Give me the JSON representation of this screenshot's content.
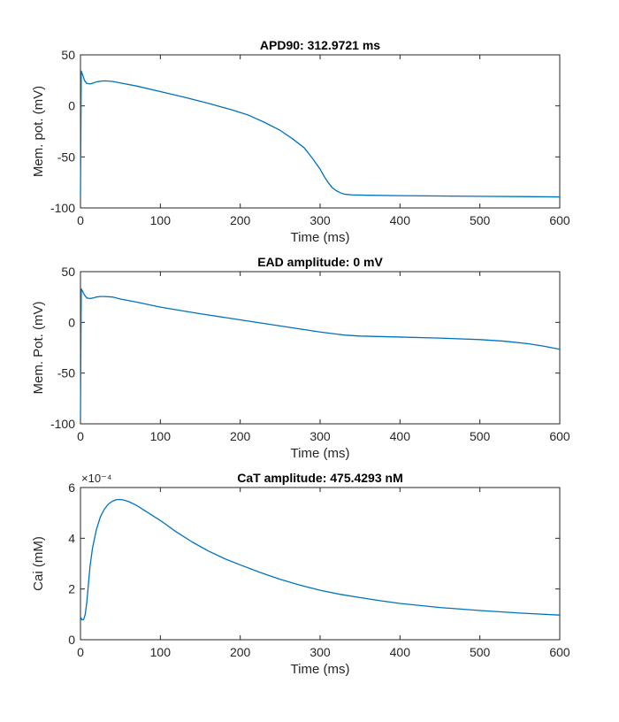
{
  "chart_data": [
    {
      "type": "line",
      "title": "APD90: 312.9721 ms",
      "xlabel": "Time (ms)",
      "ylabel": "Mem. pot. (mV)",
      "xlim": [
        0,
        600
      ],
      "ylim": [
        -100,
        50
      ],
      "xticks": [
        "0",
        "100",
        "200",
        "300",
        "400",
        "500",
        "600"
      ],
      "yticks": [
        "-100",
        "-50",
        "0",
        "50"
      ],
      "grid": false,
      "color": "#0072BD",
      "series": [
        {
          "x": [
            0,
            0.5,
            1,
            3,
            5,
            8,
            12,
            16,
            20,
            25,
            30,
            40,
            50,
            70,
            100,
            130,
            160,
            190,
            210,
            230,
            250,
            265,
            280,
            290,
            300,
            305,
            310,
            315,
            320,
            325,
            330,
            340,
            360,
            400,
            450,
            500,
            550,
            600
          ],
          "y": [
            -88,
            -30,
            34,
            30,
            25,
            22,
            21.5,
            22.5,
            23.5,
            24.2,
            24.5,
            24,
            22.5,
            19.5,
            14,
            8.5,
            2.5,
            -4,
            -9,
            -16,
            -24,
            -32,
            -41,
            -51,
            -62,
            -69,
            -75,
            -80,
            -83,
            -85,
            -86.5,
            -87.2,
            -87.6,
            -88,
            -88.3,
            -88.6,
            -88.9,
            -89.2
          ]
        }
      ]
    },
    {
      "type": "line",
      "title": "EAD amplitude: 0 mV",
      "xlabel": "Time (ms)",
      "ylabel": "Mem. Pot. (mV)",
      "xlim": [
        0,
        600
      ],
      "ylim": [
        -100,
        50
      ],
      "xticks": [
        "0",
        "100",
        "200",
        "300",
        "400",
        "500",
        "600"
      ],
      "yticks": [
        "-100",
        "-50",
        "0",
        "50"
      ],
      "grid": false,
      "color": "#0072BD",
      "series": [
        {
          "x": [
            0,
            0.5,
            1,
            3,
            5,
            8,
            12,
            16,
            20,
            25,
            30,
            40,
            50,
            70,
            100,
            150,
            200,
            250,
            300,
            330,
            350,
            400,
            450,
            500,
            530,
            560,
            580,
            600
          ],
          "y": [
            -95,
            -30,
            33,
            30,
            27,
            24,
            23.5,
            24,
            25,
            25.5,
            25.5,
            25,
            23,
            20,
            15,
            8.5,
            2.5,
            -3.5,
            -9.5,
            -12.5,
            -13.5,
            -14.5,
            -15.5,
            -17,
            -18.5,
            -21,
            -23.5,
            -26.5
          ]
        }
      ]
    },
    {
      "type": "line",
      "title": "CaT amplitude: 475.4293 nM",
      "xlabel": "Time (ms)",
      "ylabel": "Cai (mM)",
      "ylabel_exponent": "×10⁻⁴",
      "xlim": [
        0,
        600
      ],
      "ylim": [
        0,
        6
      ],
      "xticks": [
        "0",
        "100",
        "200",
        "300",
        "400",
        "500",
        "600"
      ],
      "yticks": [
        "0",
        "2",
        "4",
        "6"
      ],
      "grid": false,
      "color": "#0072BD",
      "series": [
        {
          "x": [
            0,
            2,
            4,
            6,
            8,
            10,
            12,
            15,
            20,
            25,
            30,
            35,
            40,
            45,
            50,
            55,
            60,
            70,
            80,
            90,
            100,
            120,
            140,
            160,
            180,
            200,
            225,
            250,
            275,
            300,
            325,
            350,
            375,
            400,
            450,
            500,
            550,
            600
          ],
          "y": [
            0.9,
            0.78,
            0.8,
            1.0,
            1.5,
            2.2,
            2.9,
            3.6,
            4.35,
            4.85,
            5.15,
            5.35,
            5.46,
            5.52,
            5.53,
            5.5,
            5.45,
            5.3,
            5.1,
            4.9,
            4.7,
            4.25,
            3.85,
            3.5,
            3.2,
            2.95,
            2.65,
            2.38,
            2.15,
            1.95,
            1.79,
            1.66,
            1.54,
            1.43,
            1.27,
            1.15,
            1.05,
            0.97
          ]
        }
      ]
    }
  ]
}
